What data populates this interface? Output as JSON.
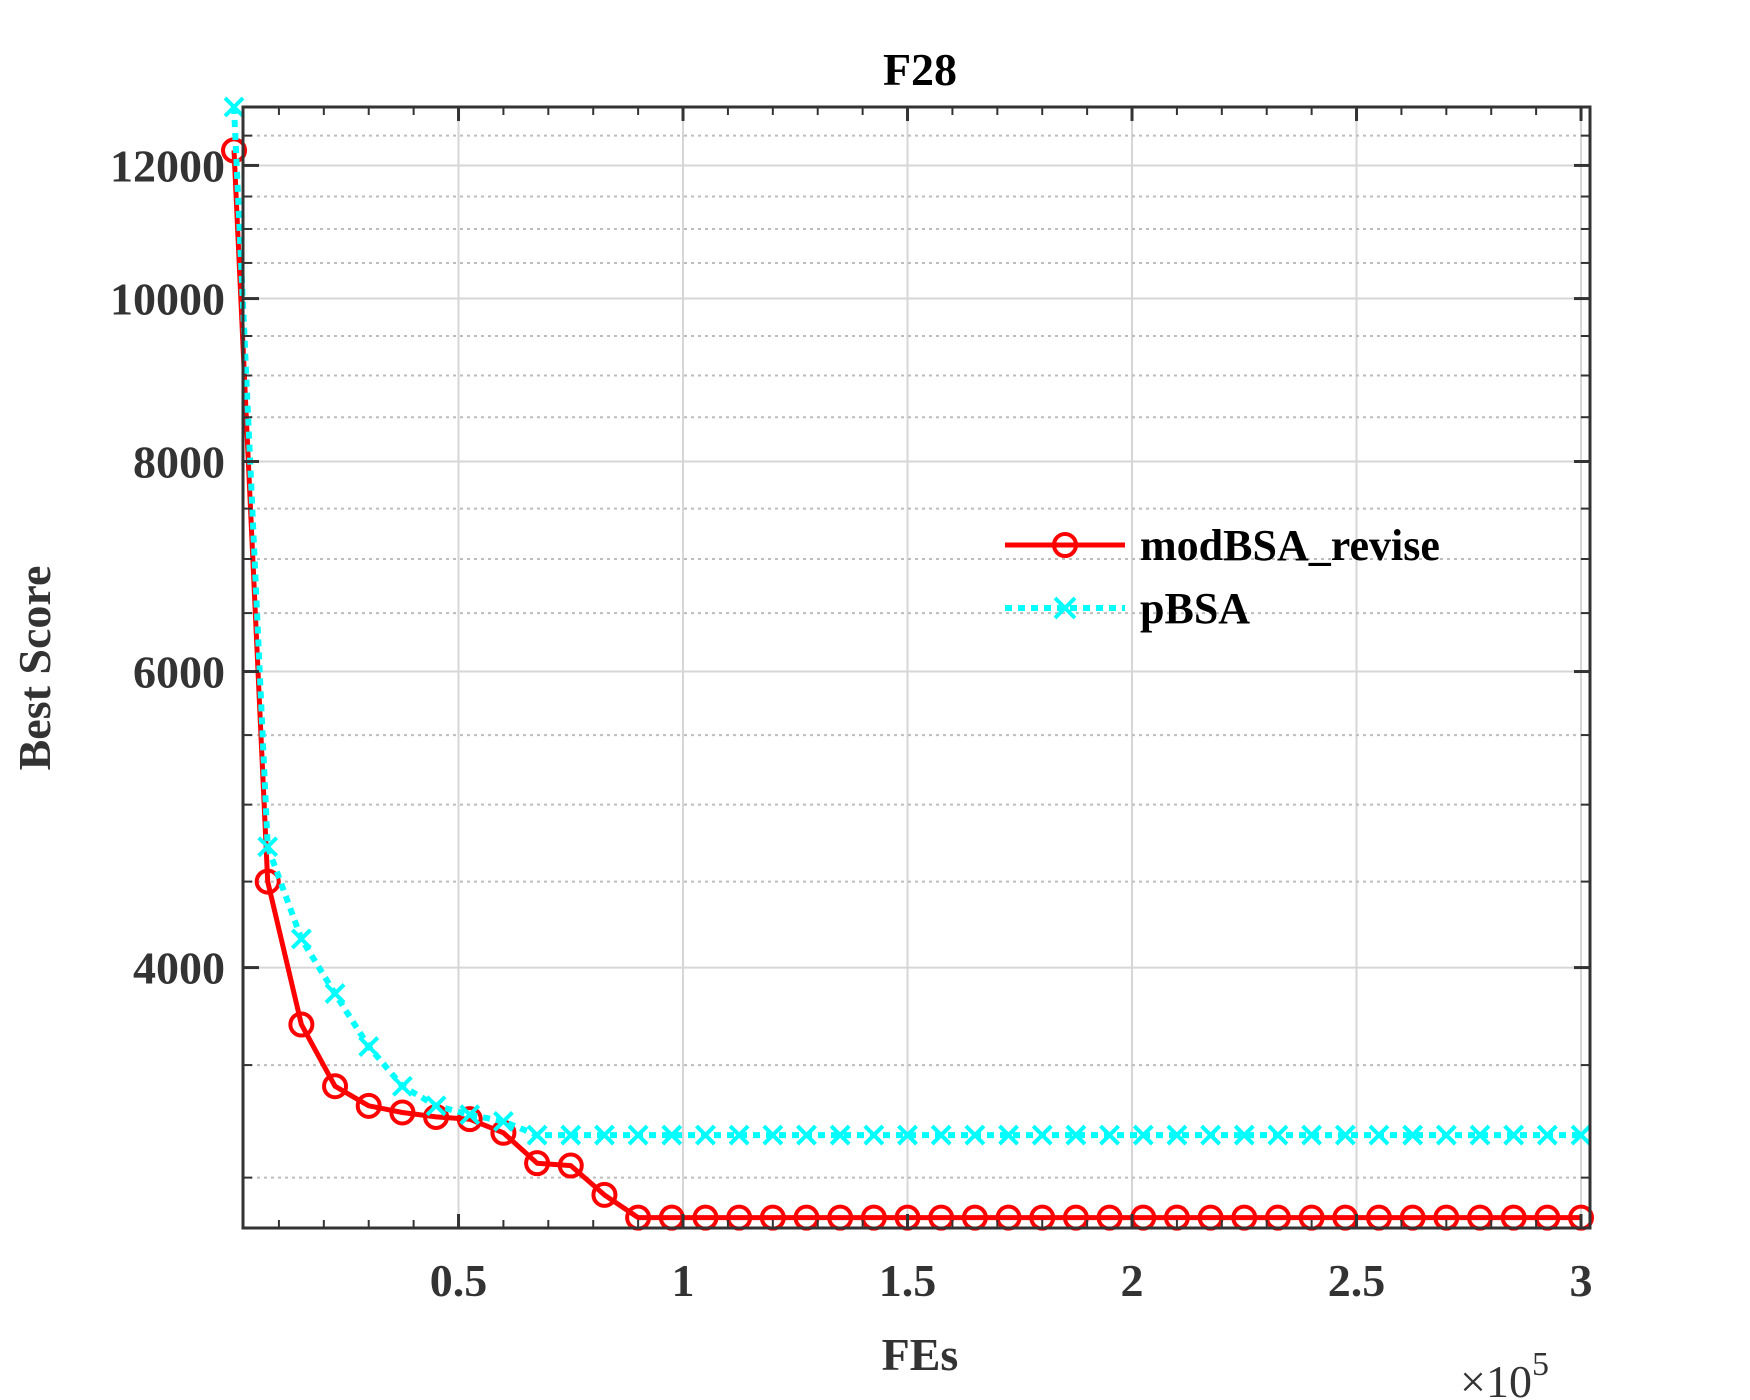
{
  "chart_data": {
    "type": "line",
    "title": "F28",
    "xlabel": "FEs",
    "ylabel": "Best Score",
    "x_exponent_label": {
      "base": "×10",
      "exponent": "5"
    },
    "xlim": [
      0.02,
      3.02
    ],
    "ylim": [
      2800,
      13000
    ],
    "y_scale": "log",
    "x_ticks": [
      0.5,
      1,
      1.5,
      2,
      2.5,
      3
    ],
    "x_tick_labels": [
      "0.5",
      "1",
      "1.5",
      "2",
      "2.5",
      "3"
    ],
    "y_ticks": [
      4000,
      6000,
      8000,
      10000,
      12000
    ],
    "y_tick_labels": [
      "4000",
      "6000",
      "8000",
      "10000",
      "12000"
    ],
    "y_minor_ticks": [
      3000,
      3500,
      4500,
      5000,
      5500,
      6500,
      7000,
      7500,
      8500,
      9000,
      9500,
      10500,
      11000,
      11500,
      12500
    ],
    "grid": true,
    "legend_position": "right-middle",
    "x": [
      0.0,
      0.075,
      0.15,
      0.225,
      0.3,
      0.375,
      0.45,
      0.525,
      0.6,
      0.675,
      0.75,
      0.825,
      0.9,
      0.975,
      1.05,
      1.125,
      1.2,
      1.275,
      1.35,
      1.425,
      1.5,
      1.575,
      1.65,
      1.725,
      1.8,
      1.875,
      1.95,
      2.025,
      2.1,
      2.175,
      2.25,
      2.325,
      2.4,
      2.475,
      2.55,
      2.625,
      2.7,
      2.775,
      2.85,
      2.925,
      3.0
    ],
    "series": [
      {
        "name": "modBSA_revise",
        "color": "#ff0000",
        "line_style": "solid",
        "marker": "circle",
        "values": [
          12250,
          4500,
          3700,
          3400,
          3310,
          3280,
          3260,
          3250,
          3190,
          3060,
          3050,
          2930,
          2840,
          2840,
          2840,
          2840,
          2840,
          2840,
          2840,
          2840,
          2840,
          2840,
          2840,
          2840,
          2840,
          2840,
          2840,
          2840,
          2840,
          2840,
          2840,
          2840,
          2840,
          2840,
          2840,
          2840,
          2840,
          2840,
          2840,
          2840,
          2840
        ]
      },
      {
        "name": "pBSA",
        "color": "#00ffff",
        "line_style": "dotted",
        "marker": "x",
        "values": [
          13000,
          4720,
          4160,
          3860,
          3590,
          3400,
          3310,
          3270,
          3240,
          3180,
          3180,
          3180,
          3180,
          3180,
          3180,
          3180,
          3180,
          3180,
          3180,
          3180,
          3180,
          3180,
          3180,
          3180,
          3180,
          3180,
          3180,
          3180,
          3180,
          3180,
          3180,
          3180,
          3180,
          3180,
          3180,
          3180,
          3180,
          3180,
          3180,
          3180,
          3180
        ]
      }
    ]
  }
}
